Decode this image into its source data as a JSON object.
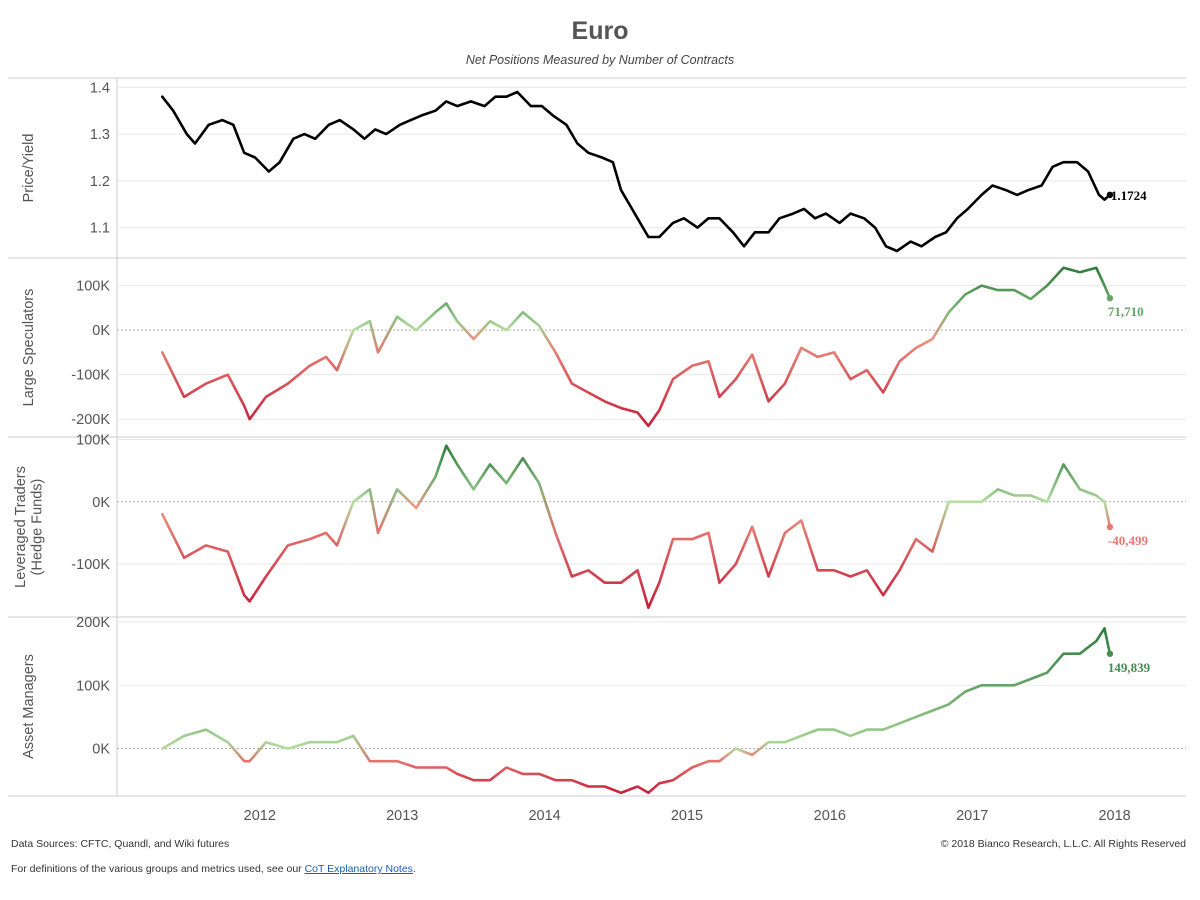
{
  "header": {
    "title": "Euro",
    "subtitle": "Net Positions Measured by Number of Contracts"
  },
  "footer": {
    "sources": "Data Sources: CFTC, Quandl, and Wiki futures",
    "copyright": "© 2018 Bianco Research, L.L.C. All Rights Reserved",
    "definitions_prefix": "For definitions of the various groups and metrics used, see our ",
    "definitions_link": "CoT Explanatory Notes",
    "definitions_suffix": "."
  },
  "colors": {
    "price_line": "#000000",
    "negative_dark": "#c8203a",
    "negative_light": "#f2a48a",
    "positive_light": "#b5dda0",
    "positive_dark": "#2e7d3e",
    "gridline": "#e8e8e8",
    "zero_line": "#b0b0b0"
  },
  "chart_data": {
    "type": "line",
    "x_axis": {
      "type": "date",
      "range": [
        "2011-07-01",
        "2018-12-31"
      ],
      "ticks": [
        "2012",
        "2013",
        "2014",
        "2015",
        "2016",
        "2017",
        "2018"
      ]
    },
    "panels": [
      {
        "axis_label": "Price/Yield",
        "y_ticks": [
          "1.1",
          "1.2",
          "1.3",
          "1.4"
        ],
        "y_tick_values": [
          1.1,
          1.2,
          1.3,
          1.4
        ],
        "ylim": [
          1.035,
          1.42
        ],
        "zero_line": false,
        "color_mode": "solid",
        "end_label": "1.1724",
        "last_value": 1.1724,
        "x": [
          "2011-10-25",
          "2011-11-22",
          "2011-12-27",
          "2012-01-17",
          "2012-02-21",
          "2012-03-27",
          "2012-04-24",
          "2012-05-22",
          "2012-06-19",
          "2012-07-24",
          "2012-08-21",
          "2012-09-25",
          "2012-10-23",
          "2012-11-20",
          "2012-12-25",
          "2013-01-22",
          "2013-02-26",
          "2013-03-26",
          "2013-04-23",
          "2013-05-21",
          "2013-06-25",
          "2013-07-23",
          "2013-08-20",
          "2013-09-24",
          "2013-10-22",
          "2013-11-19",
          "2013-12-24",
          "2014-01-28",
          "2014-02-25",
          "2014-03-25",
          "2014-04-22",
          "2014-05-27",
          "2014-06-24",
          "2014-07-22",
          "2014-08-26",
          "2014-09-23",
          "2014-10-21",
          "2014-11-25",
          "2014-12-23",
          "2015-01-13",
          "2015-02-24",
          "2015-03-24",
          "2015-04-21",
          "2015-05-26",
          "2015-06-23",
          "2015-07-28",
          "2015-08-25",
          "2015-09-22",
          "2015-10-27",
          "2015-11-24",
          "2015-12-22",
          "2016-01-26",
          "2016-02-23",
          "2016-03-29",
          "2016-04-26",
          "2016-05-24",
          "2016-06-21",
          "2016-07-26",
          "2016-08-23",
          "2016-09-27",
          "2016-10-25",
          "2016-11-22",
          "2016-12-20",
          "2017-01-24",
          "2017-02-21",
          "2017-03-28",
          "2017-04-25",
          "2017-05-23",
          "2017-06-20",
          "2017-07-25",
          "2017-08-22",
          "2017-09-26",
          "2017-10-24",
          "2017-11-21",
          "2017-12-26",
          "2018-01-23",
          "2018-02-20",
          "2018-03-27",
          "2018-04-24",
          "2018-05-22",
          "2018-06-05",
          "2018-06-19"
        ],
        "values": [
          1.38,
          1.35,
          1.3,
          1.28,
          1.32,
          1.33,
          1.32,
          1.26,
          1.25,
          1.22,
          1.24,
          1.29,
          1.3,
          1.29,
          1.32,
          1.33,
          1.31,
          1.29,
          1.31,
          1.3,
          1.32,
          1.33,
          1.34,
          1.35,
          1.37,
          1.36,
          1.37,
          1.36,
          1.38,
          1.38,
          1.39,
          1.36,
          1.36,
          1.34,
          1.32,
          1.28,
          1.26,
          1.25,
          1.24,
          1.18,
          1.12,
          1.08,
          1.08,
          1.11,
          1.12,
          1.1,
          1.12,
          1.12,
          1.09,
          1.06,
          1.09,
          1.09,
          1.12,
          1.13,
          1.14,
          1.12,
          1.13,
          1.11,
          1.13,
          1.12,
          1.1,
          1.06,
          1.05,
          1.07,
          1.06,
          1.08,
          1.09,
          1.12,
          1.14,
          1.17,
          1.19,
          1.18,
          1.17,
          1.18,
          1.19,
          1.23,
          1.24,
          1.24,
          1.22,
          1.17,
          1.16,
          1.17
        ]
      },
      {
        "axis_label": "Large Speculators",
        "y_ticks": [
          "-200K",
          "-100K",
          "0K",
          "100K"
        ],
        "y_tick_values": [
          -200000,
          -100000,
          0,
          100000
        ],
        "ylim": [
          -240000,
          162000
        ],
        "zero_line": true,
        "color_mode": "diverging",
        "end_label": "71,710",
        "last_value": 71710,
        "x": [
          "2011-10-25",
          "2011-12-20",
          "2012-02-14",
          "2012-04-10",
          "2012-05-22",
          "2012-06-05",
          "2012-07-17",
          "2012-09-11",
          "2012-11-06",
          "2012-12-18",
          "2013-01-15",
          "2013-02-26",
          "2013-04-09",
          "2013-04-30",
          "2013-06-18",
          "2013-08-06",
          "2013-09-24",
          "2013-10-22",
          "2013-11-19",
          "2013-12-31",
          "2014-02-11",
          "2014-03-25",
          "2014-05-06",
          "2014-06-17",
          "2014-07-29",
          "2014-09-09",
          "2014-10-21",
          "2014-12-02",
          "2015-01-13",
          "2015-02-24",
          "2015-03-24",
          "2015-04-21",
          "2015-05-26",
          "2015-07-14",
          "2015-08-25",
          "2015-09-22",
          "2015-11-03",
          "2015-12-15",
          "2016-01-26",
          "2016-03-08",
          "2016-04-19",
          "2016-05-31",
          "2016-07-12",
          "2016-08-23",
          "2016-10-04",
          "2016-11-15",
          "2016-12-27",
          "2017-02-07",
          "2017-03-21",
          "2017-05-02",
          "2017-06-13",
          "2017-07-25",
          "2017-09-05",
          "2017-10-17",
          "2017-11-28",
          "2018-01-09",
          "2018-02-20",
          "2018-04-03",
          "2018-05-15",
          "2018-06-05",
          "2018-06-19"
        ],
        "values": [
          -50000,
          -150000,
          -120000,
          -100000,
          -170000,
          -200000,
          -150000,
          -120000,
          -80000,
          -60000,
          -90000,
          0,
          20000,
          -50000,
          30000,
          0,
          40000,
          60000,
          20000,
          -20000,
          20000,
          0,
          40000,
          10000,
          -50000,
          -120000,
          -140000,
          -160000,
          -175000,
          -185000,
          -215000,
          -180000,
          -110000,
          -80000,
          -70000,
          -150000,
          -110000,
          -55000,
          -160000,
          -120000,
          -40000,
          -60000,
          -50000,
          -110000,
          -90000,
          -140000,
          -70000,
          -40000,
          -20000,
          40000,
          80000,
          100000,
          90000,
          90000,
          70000,
          100000,
          140000,
          130000,
          140000,
          100000,
          71710
        ]
      },
      {
        "axis_label": "Leveraged Traders (Hedge Funds)",
        "y_ticks": [
          "-100K",
          "0K",
          "100K"
        ],
        "y_tick_values": [
          -100000,
          0,
          100000
        ],
        "ylim": [
          -185000,
          104000
        ],
        "zero_line": true,
        "color_mode": "diverging",
        "end_label": "-40,499",
        "last_value": -40499,
        "x": [
          "2011-10-25",
          "2011-12-20",
          "2012-02-14",
          "2012-04-10",
          "2012-05-22",
          "2012-06-05",
          "2012-07-17",
          "2012-09-11",
          "2012-11-06",
          "2012-12-18",
          "2013-01-15",
          "2013-02-26",
          "2013-04-09",
          "2013-04-30",
          "2013-06-18",
          "2013-08-06",
          "2013-09-24",
          "2013-10-22",
          "2013-11-19",
          "2013-12-31",
          "2014-02-11",
          "2014-03-25",
          "2014-05-06",
          "2014-06-17",
          "2014-07-29",
          "2014-09-09",
          "2014-10-21",
          "2014-12-02",
          "2015-01-13",
          "2015-02-24",
          "2015-03-24",
          "2015-04-21",
          "2015-05-26",
          "2015-07-14",
          "2015-08-25",
          "2015-09-22",
          "2015-11-03",
          "2015-12-15",
          "2016-01-26",
          "2016-03-08",
          "2016-04-19",
          "2016-05-31",
          "2016-07-12",
          "2016-08-23",
          "2016-10-04",
          "2016-11-15",
          "2016-12-27",
          "2017-02-07",
          "2017-03-21",
          "2017-05-02",
          "2017-06-13",
          "2017-07-25",
          "2017-09-05",
          "2017-10-17",
          "2017-11-28",
          "2018-01-09",
          "2018-02-20",
          "2018-04-03",
          "2018-05-15",
          "2018-06-05",
          "2018-06-19"
        ],
        "values": [
          -20000,
          -90000,
          -70000,
          -80000,
          -150000,
          -160000,
          -120000,
          -70000,
          -60000,
          -50000,
          -70000,
          0,
          20000,
          -50000,
          20000,
          -10000,
          40000,
          90000,
          60000,
          20000,
          60000,
          30000,
          70000,
          30000,
          -50000,
          -120000,
          -110000,
          -130000,
          -130000,
          -110000,
          -170000,
          -130000,
          -60000,
          -60000,
          -50000,
          -130000,
          -100000,
          -40000,
          -120000,
          -50000,
          -30000,
          -110000,
          -110000,
          -120000,
          -110000,
          -150000,
          -110000,
          -60000,
          -80000,
          0,
          0,
          0,
          20000,
          10000,
          10000,
          0,
          60000,
          20000,
          10000,
          0,
          -40499
        ]
      },
      {
        "axis_label": "Asset Managers",
        "y_ticks": [
          "0K",
          "100K",
          "200K"
        ],
        "y_tick_values": [
          0,
          100000,
          200000
        ],
        "ylim": [
          -75000,
          208000
        ],
        "zero_line": true,
        "color_mode": "diverging",
        "end_label": "149,839",
        "last_value": 149839,
        "x": [
          "2011-10-25",
          "2011-12-20",
          "2012-02-14",
          "2012-04-10",
          "2012-05-22",
          "2012-06-05",
          "2012-07-17",
          "2012-09-11",
          "2012-11-06",
          "2012-12-18",
          "2013-01-15",
          "2013-02-26",
          "2013-04-09",
          "2013-04-30",
          "2013-06-18",
          "2013-08-06",
          "2013-09-24",
          "2013-10-22",
          "2013-11-19",
          "2013-12-31",
          "2014-02-11",
          "2014-03-25",
          "2014-05-06",
          "2014-06-17",
          "2014-07-29",
          "2014-09-09",
          "2014-10-21",
          "2014-12-02",
          "2015-01-13",
          "2015-02-24",
          "2015-03-24",
          "2015-04-21",
          "2015-05-26",
          "2015-07-14",
          "2015-08-25",
          "2015-09-22",
          "2015-11-03",
          "2015-12-15",
          "2016-01-26",
          "2016-03-08",
          "2016-04-19",
          "2016-05-31",
          "2016-07-12",
          "2016-08-23",
          "2016-10-04",
          "2016-11-15",
          "2016-12-27",
          "2017-02-07",
          "2017-03-21",
          "2017-05-02",
          "2017-06-13",
          "2017-07-25",
          "2017-09-05",
          "2017-10-17",
          "2017-11-28",
          "2018-01-09",
          "2018-02-20",
          "2018-04-03",
          "2018-05-15",
          "2018-06-05",
          "2018-06-19"
        ],
        "values": [
          0,
          20000,
          30000,
          10000,
          -20000,
          -20000,
          10000,
          0,
          10000,
          10000,
          10000,
          20000,
          -20000,
          -20000,
          -20000,
          -30000,
          -30000,
          -30000,
          -40000,
          -50000,
          -50000,
          -30000,
          -40000,
          -40000,
          -50000,
          -50000,
          -60000,
          -60000,
          -70000,
          -60000,
          -70000,
          -55000,
          -50000,
          -30000,
          -20000,
          -20000,
          0,
          -10000,
          10000,
          10000,
          20000,
          30000,
          30000,
          20000,
          30000,
          30000,
          40000,
          50000,
          60000,
          70000,
          90000,
          100000,
          100000,
          100000,
          110000,
          120000,
          150000,
          150000,
          170000,
          190000,
          149839
        ]
      }
    ]
  }
}
